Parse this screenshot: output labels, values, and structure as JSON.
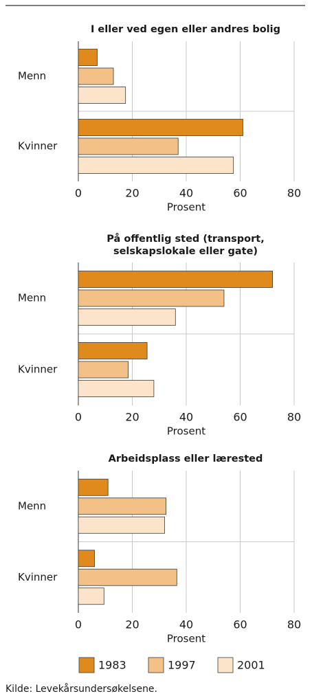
{
  "chart_data": [
    {
      "type": "bar",
      "title": [
        "I eller ved egen eller andres bolig"
      ],
      "categories": [
        "Menn",
        "Kvinner"
      ],
      "series": [
        {
          "values": [
            7,
            61
          ]
        },
        {
          "values": [
            13,
            37
          ]
        },
        {
          "values": [
            17.5,
            57.5
          ]
        }
      ],
      "xlim": [
        0,
        80
      ],
      "xticks": [
        0,
        20,
        40,
        60,
        80
      ],
      "xlabel": "Prosent",
      "grid": true
    },
    {
      "type": "bar",
      "title": [
        "På offentlig sted (transport,",
        "selskapslokale eller gate)"
      ],
      "categories": [
        "Menn",
        "Kvinner"
      ],
      "series": [
        {
          "values": [
            72,
            25.5
          ]
        },
        {
          "values": [
            54,
            18.5
          ]
        },
        {
          "values": [
            36,
            28
          ]
        }
      ],
      "xlim": [
        0,
        80
      ],
      "xticks": [
        0,
        20,
        40,
        60,
        80
      ],
      "xlabel": "Prosent",
      "grid": true
    },
    {
      "type": "bar",
      "title": [
        "Arbeidsplass eller lærested"
      ],
      "categories": [
        "Menn",
        "Kvinner"
      ],
      "series": [
        {
          "values": [
            11,
            6
          ]
        },
        {
          "values": [
            32.5,
            36.5
          ]
        },
        {
          "values": [
            32,
            9.5
          ]
        }
      ],
      "xlim": [
        0,
        80
      ],
      "xticks": [
        0,
        20,
        40,
        60,
        80
      ],
      "xlabel": "Prosent",
      "grid": true
    }
  ],
  "legend": [
    {
      "name": "1983",
      "color": "#e08a1e"
    },
    {
      "name": "1997",
      "color": "#f3c188"
    },
    {
      "name": "2001",
      "color": "#fce4ca"
    }
  ],
  "source": "Kilde: Levekårsundersøkelsene."
}
